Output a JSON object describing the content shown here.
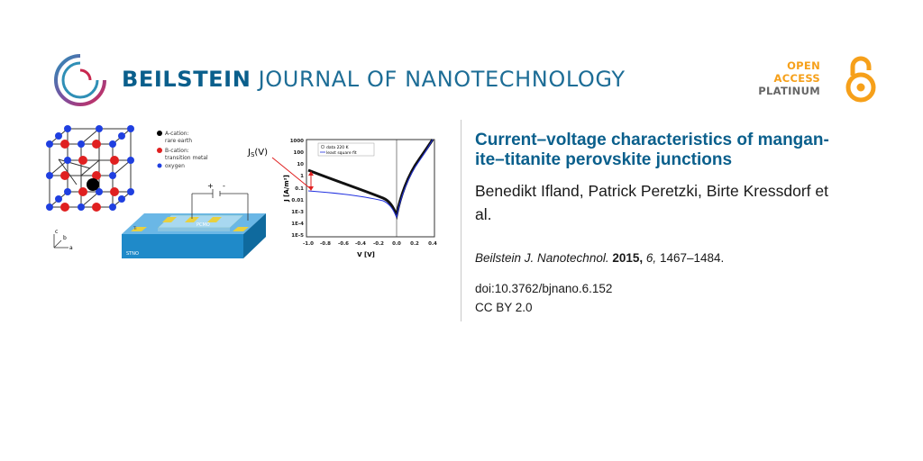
{
  "header": {
    "journal_name_bold": "BEILSTEIN",
    "journal_name_rest": "JOURNAL OF NANOTECHNOLOGY",
    "open_access": {
      "line1": "OPEN",
      "line2": "ACCESS",
      "line3": "PLATINUM"
    }
  },
  "figure": {
    "legend": {
      "a_cation": "A-cation:",
      "a_cation_desc": "rare earth",
      "b_cation": "B-cation:",
      "b_cation_desc": "transition metal",
      "oxygen": "oxygen"
    },
    "axes_labels": {
      "c": "c",
      "b": "b",
      "a": "a"
    },
    "device": {
      "substrate": "STNO",
      "film": "PCMO",
      "plus": "+",
      "minus": "-",
      "ti": "Ti"
    },
    "plot": {
      "annotation": "J",
      "annotation_sub": "S",
      "annotation_tail": "(V)",
      "legend_data": "data 220 K",
      "legend_fit": "least square fit",
      "ylabel": "J [A/m²]",
      "xlabel": "V [V]",
      "yticks": [
        "1000",
        "100",
        "10",
        "1",
        "0.1",
        "0.01",
        "1E-3",
        "1E-4",
        "1E-5"
      ],
      "xticks": [
        "-1.0",
        "-0.8",
        "-0.6",
        "-0.4",
        "-0.2",
        "0.0",
        "0.2",
        "0.4"
      ]
    }
  },
  "article": {
    "title_line1": "Current–voltage characteristics of mangan-",
    "title_line2": "ite–titanite perovskite junctions",
    "authors_line1": "Benedikt Ifland, Patrick Peretzki, Birte Kressdorf et",
    "authors_line2": "al.",
    "citation": {
      "journal": "Beilstein J. Nanotechnol.",
      "year": "2015,",
      "volume": "6,",
      "pages": "1467–1484."
    },
    "doi": "doi:10.3762/bjnano.6.152",
    "license": "CC BY 2.0"
  },
  "colors": {
    "brand_blue": "#0a5f8c",
    "oa_orange": "#f6a01a"
  }
}
